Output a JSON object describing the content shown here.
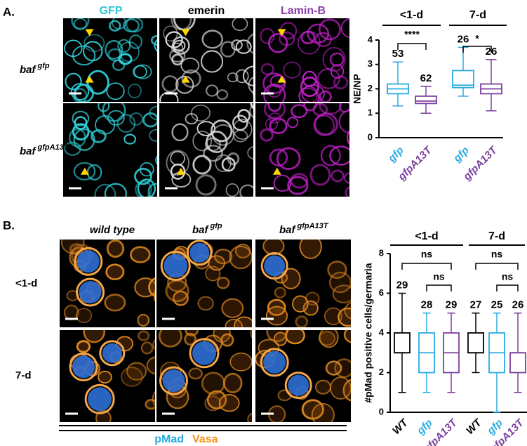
{
  "figure": {
    "panel_a": {
      "label": "A.",
      "columns": [
        "GFP",
        "emerin",
        "Lamin-B"
      ],
      "rows": [
        {
          "name": "baf",
          "sup": "gfp"
        },
        {
          "name": "baf",
          "sup": "gfpA13T"
        }
      ]
    },
    "panel_b": {
      "label": "B.",
      "columns": [
        {
          "name": "wild type"
        },
        {
          "name": "baf",
          "sup": "gfp"
        },
        {
          "name": "baf",
          "sup": "gfpA13T"
        }
      ],
      "rows": [
        "<1-d",
        "7-d"
      ],
      "legend": [
        "pMad",
        "Vasa"
      ]
    }
  },
  "chart_data": [
    {
      "type": "box",
      "ylabel": "NE/NP",
      "ylim": [
        0,
        4
      ],
      "yticks": [
        0,
        1,
        2,
        3,
        4
      ],
      "categories": [
        "gfp",
        "gfpA13T",
        "gfp",
        "gfpA13T"
      ],
      "colors": [
        "#29abe2",
        "#7b3f9e",
        "#29abe2",
        "#7b3f9e"
      ],
      "groups": [
        "<1-d",
        "7-d"
      ],
      "boxes": [
        {
          "min": 1.3,
          "q1": 1.8,
          "median": 2.0,
          "q3": 2.2,
          "max": 3.1,
          "n": 53
        },
        {
          "min": 1.0,
          "q1": 1.4,
          "median": 1.5,
          "q3": 1.7,
          "max": 2.1,
          "n": 62
        },
        {
          "min": 1.7,
          "q1": 2.05,
          "median": 2.15,
          "q3": 2.75,
          "max": 3.7,
          "n": 26
        },
        {
          "min": 1.1,
          "q1": 1.8,
          "median": 2.0,
          "q3": 2.2,
          "max": 3.2,
          "n": 26
        }
      ],
      "annotations": [
        "****",
        "*"
      ]
    },
    {
      "type": "box",
      "ylabel": "#pMad positive cells/germaria",
      "ylim": [
        0,
        8
      ],
      "yticks": [
        0,
        2,
        4,
        6,
        8
      ],
      "categories": [
        "WT",
        "gfp",
        "gfpA13T",
        "WT",
        "gfp",
        "gfpA13T"
      ],
      "colors": [
        "#000000",
        "#29abe2",
        "#7b3f9e",
        "#000000",
        "#29abe2",
        "#7b3f9e"
      ],
      "groups": [
        "<1-d",
        "7-d"
      ],
      "boxes": [
        {
          "min": 1,
          "q1": 3,
          "median": 3,
          "q3": 4,
          "max": 6,
          "n": 29
        },
        {
          "min": 1,
          "q1": 2,
          "median": 3,
          "q3": 4,
          "max": 5,
          "n": 28
        },
        {
          "min": 1,
          "q1": 2,
          "median": 3,
          "q3": 4,
          "max": 5,
          "n": 29
        },
        {
          "min": 2,
          "q1": 3,
          "median": 3,
          "q3": 4,
          "max": 5,
          "n": 27
        },
        {
          "min": 0,
          "q1": 2,
          "median": 3,
          "q3": 4,
          "max": 5,
          "n": 25
        },
        {
          "min": 1,
          "q1": 2,
          "median": 3,
          "q3": 3,
          "max": 5,
          "n": 26
        }
      ],
      "annotations": [
        "ns",
        "ns",
        "ns",
        "ns"
      ]
    }
  ]
}
